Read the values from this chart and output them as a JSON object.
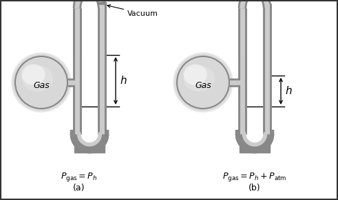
{
  "bg_color": "#ffffff",
  "tube_outer_color": "#888888",
  "tube_inner_color": "#cccccc",
  "tube_lw_outer": 10,
  "tube_lw_inner": 6,
  "mercury_color": "#888888",
  "bulb_face": "#e0e0e0",
  "bulb_edge": "#888888",
  "label_a": "(a)",
  "label_b": "(b)",
  "vacuum_label": "Vacuum",
  "gas_label": "Gas",
  "h_label": "h",
  "border_color": "#333333"
}
